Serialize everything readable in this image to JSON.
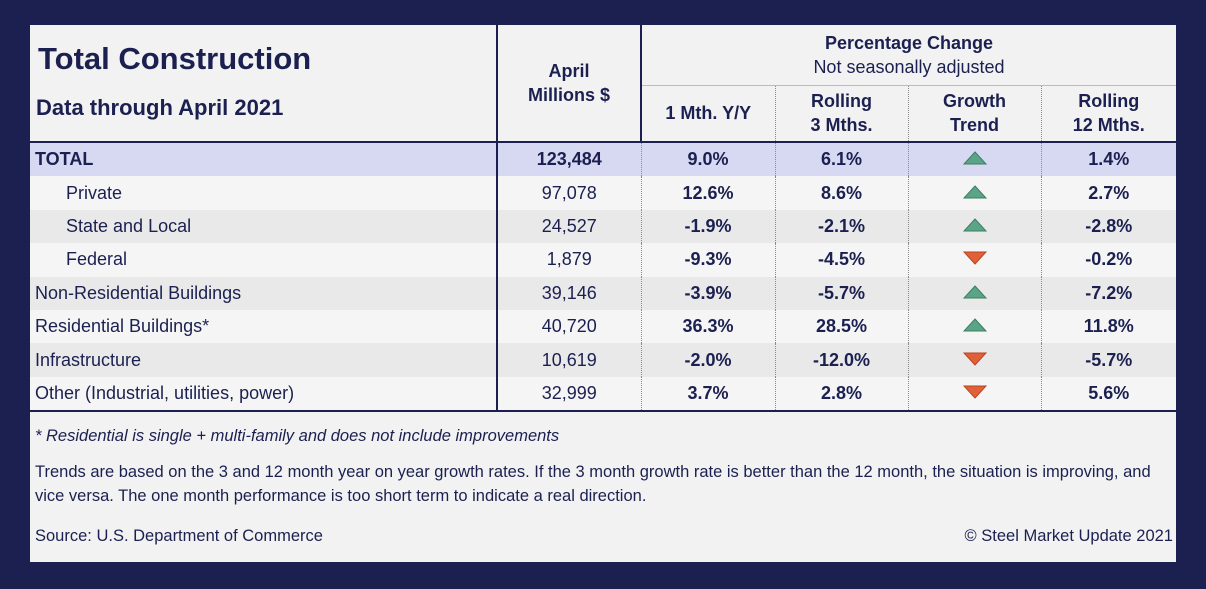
{
  "header": {
    "title": "Total Construction",
    "subtitle": "Data through April 2021"
  },
  "columns": {
    "value": [
      "April",
      "Millions $"
    ],
    "group": [
      "Percentage Change",
      "Not seasonally adjusted"
    ],
    "changes": [
      [
        "1 Mth. Y/Y"
      ],
      [
        "Rolling",
        "3 Mths."
      ],
      [
        "Growth",
        "Trend"
      ],
      [
        "Rolling",
        "12 Mths."
      ]
    ]
  },
  "table": {
    "rows": [
      {
        "label": "TOTAL",
        "value": "123,484",
        "m1": "9.0%",
        "r3": "6.1%",
        "trend": "up",
        "r12": "1.4%"
      },
      {
        "label": "Private",
        "value": "97,078",
        "m1": "12.6%",
        "r3": "8.6%",
        "trend": "up",
        "r12": "2.7%"
      },
      {
        "label": "State and Local",
        "value": "24,527",
        "m1": "-1.9%",
        "r3": "-2.1%",
        "trend": "up",
        "r12": "-2.8%"
      },
      {
        "label": "Federal",
        "value": "1,879",
        "m1": "-9.3%",
        "r3": "-4.5%",
        "trend": "down",
        "r12": "-0.2%"
      },
      {
        "label": "Non-Residential Buildings",
        "value": "39,146",
        "m1": "-3.9%",
        "r3": "-5.7%",
        "trend": "up",
        "r12": "-7.2%"
      },
      {
        "label": "Residential Buildings*",
        "value": "40,720",
        "m1": "36.3%",
        "r3": "28.5%",
        "trend": "up",
        "r12": "11.8%"
      },
      {
        "label": "Infrastructure",
        "value": "10,619",
        "m1": "-2.0%",
        "r3": "-12.0%",
        "trend": "down",
        "r12": "-5.7%"
      },
      {
        "label": "Other (Industrial, utilities, power)",
        "value": "32,999",
        "m1": "3.7%",
        "r3": "2.8%",
        "trend": "down",
        "r12": "5.6%"
      }
    ]
  },
  "notes": {
    "footnote": "* Residential is single + multi-family and does not include improvements",
    "explanation": "Trends are based on the 3 and 12 month year on year growth rates. If the 3 month growth rate is better than the 12 month, the situation is improving, and vice versa. The one month performance is too short term to indicate a real direction.",
    "source": "Source: U.S. Department of Commerce",
    "copyright": "© Steel Market Update 2021"
  }
}
